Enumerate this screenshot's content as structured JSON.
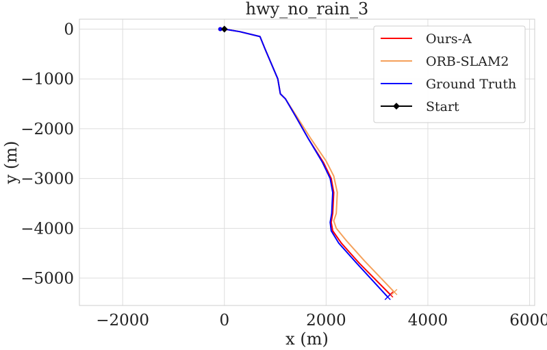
{
  "chart_data": {
    "type": "line",
    "title": "hwy_no_rain_3",
    "xlabel": "x (m)",
    "ylabel": "y (m)",
    "xlim": [
      -2850,
      6100
    ],
    "ylim": [
      -5550,
      200
    ],
    "xticks": [
      -2000,
      0,
      2000,
      4000,
      6000
    ],
    "xtick_labels": [
      "−2000",
      "0",
      "2000",
      "4000",
      "6000"
    ],
    "yticks": [
      0,
      -1000,
      -2000,
      -3000,
      -4000,
      -5000
    ],
    "ytick_labels": [
      "0",
      "−1000",
      "−2000",
      "−3000",
      "−4000",
      "−5000"
    ],
    "grid": true,
    "legend_position": "top-right",
    "series": [
      {
        "name": "Ours-A",
        "color": "#ff0000",
        "end_marker": "x",
        "x": [
          0,
          300,
          700,
          800,
          1050,
          1100,
          1200,
          1400,
          1650,
          1950,
          2100,
          2150,
          2130,
          2100,
          2130,
          2300,
          2650,
          3260
        ],
        "y": [
          0,
          -50,
          -150,
          -400,
          -1000,
          -1300,
          -1400,
          -1750,
          -2200,
          -2680,
          -3000,
          -3280,
          -3700,
          -3880,
          -4050,
          -4300,
          -4700,
          -5330
        ]
      },
      {
        "name": "ORB-SLAM2",
        "color": "#f5a05a",
        "end_marker": "x",
        "x": [
          0,
          300,
          700,
          800,
          1050,
          1100,
          1200,
          1420,
          1700,
          2000,
          2150,
          2220,
          2200,
          2150,
          2200,
          2400,
          2750,
          3340
        ],
        "y": [
          0,
          -50,
          -150,
          -400,
          -1000,
          -1300,
          -1400,
          -1750,
          -2200,
          -2650,
          -2950,
          -3280,
          -3700,
          -3850,
          -4000,
          -4250,
          -4650,
          -5280
        ]
      },
      {
        "name": "Ground Truth",
        "color": "#0000ff",
        "end_marker": "x",
        "x": [
          0,
          300,
          700,
          800,
          1050,
          1100,
          1200,
          1400,
          1650,
          1930,
          2080,
          2130,
          2110,
          2080,
          2100,
          2250,
          2600,
          3210
        ],
        "y": [
          0,
          -50,
          -150,
          -400,
          -1000,
          -1300,
          -1400,
          -1750,
          -2200,
          -2680,
          -3000,
          -3280,
          -3700,
          -3880,
          -4050,
          -4300,
          -4700,
          -5380
        ]
      },
      {
        "name": "Start",
        "color": "#000000",
        "marker": "diamond",
        "x": [
          0
        ],
        "y": [
          0
        ]
      }
    ]
  }
}
